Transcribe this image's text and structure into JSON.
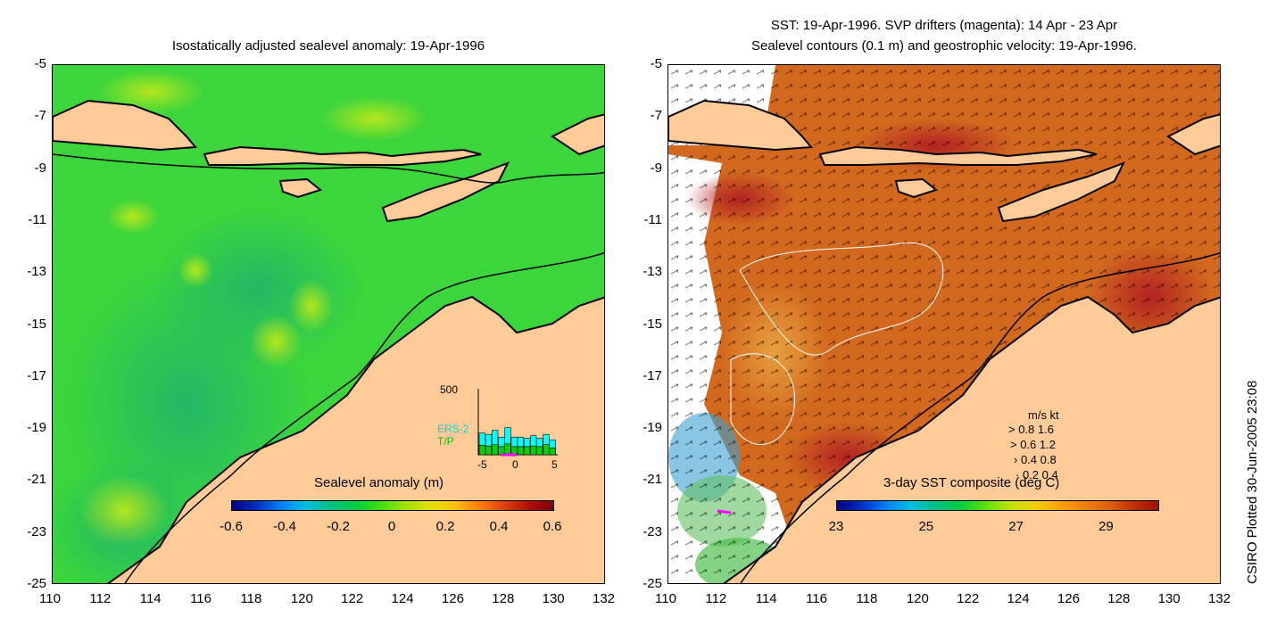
{
  "left_panel": {
    "title": "Isostatically adjusted sealevel anomaly: 19-Apr-1996",
    "colorbar": {
      "label": "Sealevel anomaly (m)",
      "ticks": [
        "-0.6",
        "-0.4",
        "-0.2",
        "0",
        "0.2",
        "0.4",
        "0.6"
      ],
      "colors": [
        "#000080",
        "#0030c0",
        "#0080ff",
        "#00c0e0",
        "#00c080",
        "#00d040",
        "#40e000",
        "#a0e000",
        "#e0e000",
        "#ffc000",
        "#ff8000",
        "#e04000",
        "#b01000",
        "#800000"
      ]
    },
    "histogram": {
      "ymax_label": "500",
      "series_labels": [
        "ERS-2",
        "T/P"
      ],
      "series_colors": [
        "#00ffff",
        "#00d000"
      ],
      "xticks": [
        "-5",
        "0",
        "5"
      ],
      "ers2_values": [
        0.32,
        0.3,
        0.36,
        0.26,
        0.4,
        0.26,
        0.26,
        0.24,
        0.28,
        0.24,
        0.3,
        0.22
      ],
      "tp_values": [
        0.14,
        0.13,
        0.15,
        0.12,
        0.16,
        0.12,
        0.12,
        0.12,
        0.13,
        0.12,
        0.15,
        0.1
      ]
    }
  },
  "right_panel": {
    "title_line1": "SST: 19-Apr-1996. SVP drifters (magenta): 14 Apr - 23 Apr",
    "title_line2": "Sealevel contours (0.1 m) and geostrophic velocity: 19-Apr-1996.",
    "colorbar": {
      "label": "3-day SST composite (deg C)",
      "ticks": [
        "23",
        "25",
        "27",
        "29"
      ],
      "colors": [
        "#000080",
        "#0030c0",
        "#0080ff",
        "#00c0e0",
        "#00c080",
        "#00d040",
        "#60e000",
        "#c0e000",
        "#f0d000",
        "#ffa000",
        "#f08000",
        "#e06000",
        "#c03000",
        "#a01000"
      ]
    },
    "velocity_legend": {
      "header": "m/s  kt",
      "rows": [
        "0.8  1.6",
        "0.6  1.2",
        "0.4  0.8",
        "0.2  0.4"
      ]
    }
  },
  "axes": {
    "y_ticks": [
      "-5",
      "-7",
      "-9",
      "-11",
      "-13",
      "-15",
      "-17",
      "-19",
      "-21",
      "-23",
      "-25"
    ],
    "x_ticks": [
      "110",
      "112",
      "114",
      "116",
      "118",
      "120",
      "122",
      "124",
      "126",
      "128",
      "130",
      "132"
    ]
  },
  "credit": "CSIRO Plotted 30-Jun-2005 23:08",
  "colors": {
    "land": "#ffcc99",
    "sea_green": "#39d639",
    "sea_warm": "#d2691e",
    "coast": "#000000"
  }
}
